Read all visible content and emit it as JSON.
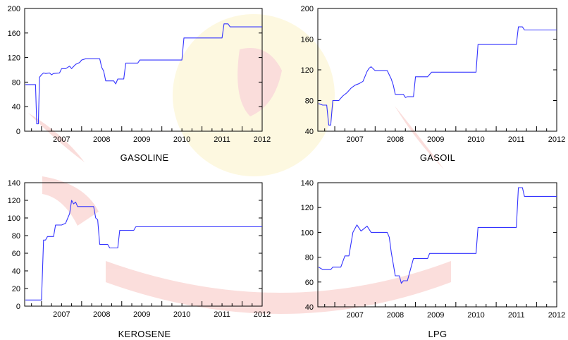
{
  "colors": {
    "line": "#3333ff",
    "axis": "#000000",
    "watermark_red": "#e8473c",
    "watermark_yellow": "#f5dc5a"
  },
  "chart_data": [
    {
      "type": "line",
      "title": "GASOLINE",
      "ylim": [
        0,
        200
      ],
      "yticks": [
        "0",
        "40",
        "80",
        "120",
        "160",
        "200"
      ],
      "xticks": [
        "2007",
        "2008",
        "2009",
        "2010",
        "2011",
        "2012"
      ],
      "grid": false,
      "series": [
        {
          "x": [
            2006.6,
            2006.85,
            2006.88,
            2006.92,
            2006.95,
            2007.0,
            2007.05,
            2007.1,
            2007.2,
            2007.25,
            2007.3,
            2007.45,
            2007.5,
            2007.6,
            2007.7,
            2007.75,
            2007.85,
            2007.95,
            2008.0,
            2008.1,
            2008.2,
            2008.3,
            2008.4,
            2008.45,
            2008.5,
            2008.55,
            2008.6,
            2008.7,
            2008.8,
            2008.85,
            2008.9,
            2009.0,
            2009.05,
            2009.1,
            2009.2,
            2009.4,
            2009.45,
            2010.0,
            2010.5,
            2010.55,
            2011.0,
            2011.5,
            2011.55,
            2011.65,
            2011.7,
            2012.0,
            2012.5
          ],
          "values": [
            76,
            76,
            12,
            12,
            88,
            92,
            95,
            94,
            95,
            92,
            94,
            95,
            102,
            102,
            106,
            102,
            109,
            112,
            116,
            118,
            118,
            118,
            118,
            118,
            104,
            98,
            82,
            82,
            82,
            77,
            85,
            85,
            85,
            111,
            111,
            111,
            116,
            116,
            116,
            152,
            152,
            152,
            175,
            175,
            170,
            170,
            170
          ]
        }
      ]
    },
    {
      "type": "line",
      "title": "GASOIL",
      "ylim": [
        40,
        200
      ],
      "yticks": [
        "40",
        "80",
        "120",
        "160",
        "200"
      ],
      "xticks": [
        "2007",
        "2008",
        "2009",
        "2010",
        "2011",
        "2012"
      ],
      "grid": false,
      "series": [
        {
          "x": [
            2006.6,
            2006.7,
            2006.8,
            2006.85,
            2006.9,
            2006.95,
            2007.1,
            2007.15,
            2007.2,
            2007.3,
            2007.4,
            2007.5,
            2007.6,
            2007.7,
            2007.8,
            2007.85,
            2007.9,
            2008.0,
            2008.2,
            2008.3,
            2008.4,
            2008.45,
            2008.5,
            2008.6,
            2008.7,
            2008.75,
            2008.8,
            2008.95,
            2009.0,
            2009.3,
            2009.4,
            2010.0,
            2010.5,
            2010.55,
            2011.0,
            2011.5,
            2011.55,
            2011.65,
            2011.7,
            2012.0,
            2012.5
          ],
          "values": [
            76,
            74,
            74,
            48,
            48,
            80,
            80,
            83,
            86,
            90,
            96,
            100,
            102,
            105,
            118,
            122,
            124,
            119,
            119,
            119,
            108,
            100,
            88,
            88,
            88,
            84,
            85,
            85,
            111,
            111,
            117,
            117,
            117,
            153,
            153,
            153,
            176,
            176,
            172,
            172,
            172
          ]
        }
      ]
    },
    {
      "type": "line",
      "title": "KEROSENE",
      "ylim": [
        0,
        140
      ],
      "yticks": [
        "0",
        "20",
        "40",
        "60",
        "80",
        "100",
        "120",
        "140"
      ],
      "xticks": [
        "2007",
        "2008",
        "2009",
        "2010",
        "2011",
        "2012"
      ],
      "grid": false,
      "series": [
        {
          "x": [
            2006.6,
            2007.0,
            2007.05,
            2007.1,
            2007.15,
            2007.3,
            2007.35,
            2007.5,
            2007.6,
            2007.7,
            2007.75,
            2007.8,
            2007.85,
            2007.9,
            2008.0,
            2008.3,
            2008.35,
            2008.4,
            2008.45,
            2008.5,
            2008.65,
            2008.7,
            2008.9,
            2008.95,
            2009.3,
            2009.35,
            2010.0,
            2012.5
          ],
          "values": [
            7,
            7,
            75,
            75,
            79,
            79,
            92,
            92,
            94,
            105,
            120,
            116,
            118,
            113,
            113,
            113,
            100,
            98,
            70,
            70,
            70,
            66,
            66,
            86,
            86,
            90,
            90,
            90
          ]
        }
      ]
    },
    {
      "type": "line",
      "title": "LPG",
      "ylim": [
        40,
        140
      ],
      "yticks": [
        "40",
        "60",
        "80",
        "100",
        "120",
        "140"
      ],
      "xticks": [
        "2007",
        "2008",
        "2009",
        "2010",
        "2011",
        "2012"
      ],
      "grid": false,
      "series": [
        {
          "x": [
            2006.6,
            2006.65,
            2006.7,
            2006.9,
            2006.95,
            2007.15,
            2007.25,
            2007.35,
            2007.45,
            2007.55,
            2007.65,
            2007.8,
            2007.9,
            2008.2,
            2008.3,
            2008.35,
            2008.4,
            2008.5,
            2008.6,
            2008.65,
            2008.7,
            2008.8,
            2008.95,
            2009.0,
            2009.3,
            2009.35,
            2010.0,
            2010.5,
            2010.55,
            2011.0,
            2011.5,
            2011.55,
            2011.65,
            2011.7,
            2012.0,
            2012.5
          ],
          "values": [
            72,
            71,
            70,
            70,
            72,
            72,
            81,
            81,
            100,
            106,
            101,
            105,
            100,
            100,
            100,
            96,
            84,
            65,
            65,
            59,
            61,
            61,
            79,
            79,
            79,
            83,
            83,
            83,
            104,
            104,
            104,
            136,
            136,
            129,
            129,
            129
          ]
        }
      ]
    }
  ]
}
